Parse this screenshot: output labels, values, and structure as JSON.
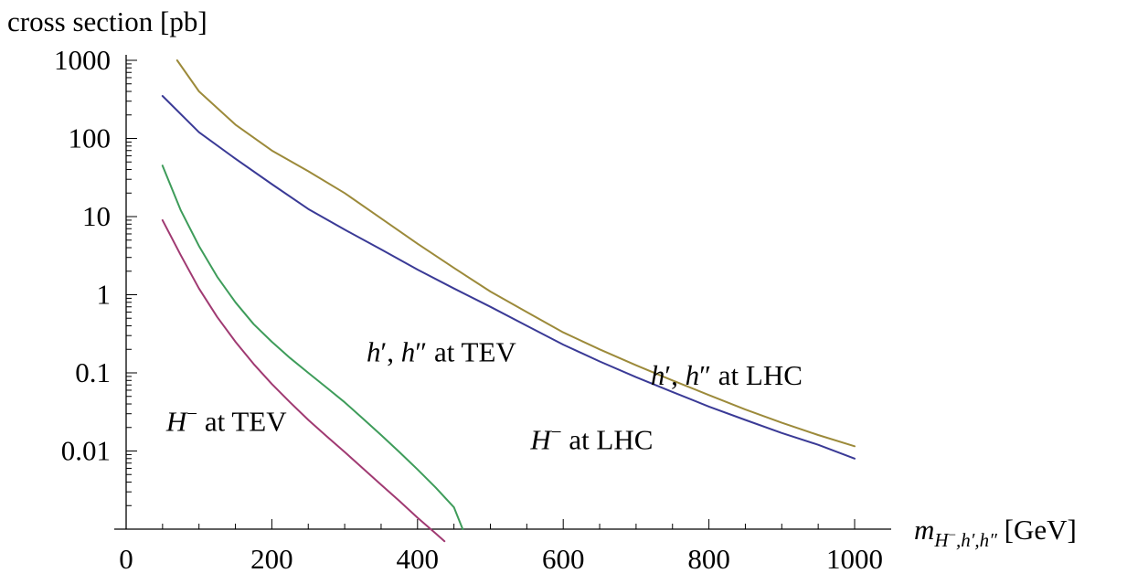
{
  "chart_data": {
    "type": "line",
    "title": "",
    "ylabel": "cross section [pb]",
    "xlabel_parts": {
      "m": "m",
      "sub_main": "H",
      "sub_minus": "−",
      "sub_rest": ",h′,h″",
      "unit": " [GeV]"
    },
    "xlim": [
      0,
      1000
    ],
    "ylim": [
      0.001,
      1000
    ],
    "y_scale": "log",
    "grid": false,
    "legend": "none",
    "x_ticks": [
      {
        "value": 0,
        "label": "0"
      },
      {
        "value": 200,
        "label": "200"
      },
      {
        "value": 400,
        "label": "400"
      },
      {
        "value": 600,
        "label": "600"
      },
      {
        "value": 800,
        "label": "800"
      },
      {
        "value": 1000,
        "label": "1000"
      }
    ],
    "y_ticks": [
      {
        "value": 0.01,
        "label": "0.01"
      },
      {
        "value": 0.1,
        "label": "0.1"
      },
      {
        "value": 1,
        "label": "1"
      },
      {
        "value": 10,
        "label": "10"
      },
      {
        "value": 100,
        "label": "100"
      },
      {
        "value": 1000,
        "label": "1000"
      }
    ],
    "series": [
      {
        "key": "h-lhc",
        "color": "#9C8A3A",
        "x": [
          70,
          100,
          150,
          200,
          250,
          300,
          350,
          400,
          450,
          500,
          550,
          600,
          650,
          700,
          750,
          800,
          850,
          900,
          950,
          1000
        ],
        "y": [
          1000,
          400,
          150,
          70,
          38,
          20,
          9.5,
          4.5,
          2.2,
          1.1,
          0.6,
          0.33,
          0.2,
          0.125,
          0.08,
          0.052,
          0.034,
          0.023,
          0.016,
          0.0115
        ]
      },
      {
        "key": "H-lhc",
        "color": "#3A3A96",
        "x": [
          50,
          100,
          150,
          200,
          250,
          300,
          350,
          400,
          450,
          500,
          550,
          600,
          650,
          700,
          750,
          800,
          850,
          900,
          950,
          1000
        ],
        "y": [
          350,
          120,
          55,
          26,
          12.5,
          6.8,
          3.8,
          2.1,
          1.2,
          0.7,
          0.4,
          0.23,
          0.14,
          0.088,
          0.057,
          0.037,
          0.025,
          0.017,
          0.012,
          0.008
        ]
      },
      {
        "key": "h-tev",
        "color": "#3E9C5A",
        "x": [
          50,
          75,
          100,
          125,
          150,
          175,
          200,
          225,
          250,
          275,
          300,
          325,
          350,
          375,
          400,
          425,
          450,
          462
        ],
        "y": [
          45,
          12,
          4.2,
          1.7,
          0.8,
          0.42,
          0.25,
          0.155,
          0.1,
          0.065,
          0.042,
          0.026,
          0.016,
          0.0097,
          0.0058,
          0.0034,
          0.0019,
          0.001
        ]
      },
      {
        "key": "H-tev",
        "color": "#A03A72",
        "x": [
          50,
          75,
          100,
          125,
          150,
          175,
          200,
          225,
          250,
          275,
          300,
          325,
          350,
          375,
          400,
          425,
          437
        ],
        "y": [
          9,
          3.2,
          1.2,
          0.52,
          0.25,
          0.13,
          0.072,
          0.042,
          0.025,
          0.0155,
          0.0097,
          0.006,
          0.0037,
          0.0023,
          0.0014,
          0.00088,
          0.0007
        ]
      }
    ],
    "annotations": [
      {
        "key": "a-h-tev",
        "x": 330,
        "y": 0.14,
        "parts": [
          "h",
          "′",
          ", ",
          "h",
          "″",
          " at TEV"
        ]
      },
      {
        "key": "a-H-tev",
        "x": 55,
        "y": 0.018,
        "parts": [
          "H",
          "−",
          " at TEV"
        ]
      },
      {
        "key": "a-h-lhc",
        "x": 720,
        "y": 0.07,
        "parts": [
          "h",
          "′",
          ", ",
          "h",
          "″",
          " at LHC"
        ]
      },
      {
        "key": "a-H-lhc",
        "x": 555,
        "y": 0.0105,
        "parts": [
          "H",
          "−",
          " at LHC"
        ]
      }
    ]
  }
}
